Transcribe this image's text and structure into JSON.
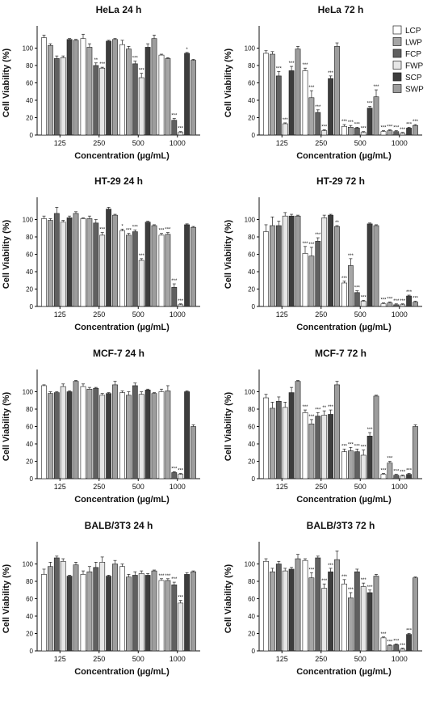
{
  "series_style": [
    {
      "name": "LCP",
      "fill": "#ffffff"
    },
    {
      "name": "LWP",
      "fill": "#a6a6a6"
    },
    {
      "name": "FCP",
      "fill": "#606060"
    },
    {
      "name": "FWP",
      "fill": "#e6e6e6"
    },
    {
      "name": "SCP",
      "fill": "#3d3d3d"
    },
    {
      "name": "SWP",
      "fill": "#9d9d9d"
    }
  ],
  "chart_data": [
    {
      "type": "bar",
      "title": "HeLa 24 h",
      "xlabel": "Concentration (µg/mL)",
      "ylabel": "Cell Viability (%)",
      "categories": [
        "125",
        "250",
        "500",
        "1000"
      ],
      "ylim": [
        0,
        120
      ],
      "yticks": [
        0,
        20,
        40,
        60,
        80,
        100
      ],
      "series": [
        {
          "name": "LCP",
          "values": [
            112,
            111,
            104,
            92
          ],
          "errors": [
            3,
            5,
            5,
            1
          ],
          "stars": [
            "",
            "",
            "",
            ""
          ]
        },
        {
          "name": "LWP",
          "values": [
            103,
            101,
            99,
            88
          ],
          "errors": [
            2,
            4,
            3,
            1
          ],
          "stars": [
            "",
            "",
            "",
            ""
          ]
        },
        {
          "name": "FCP",
          "values": [
            88,
            80,
            82,
            17
          ],
          "errors": [
            3,
            3,
            3,
            2
          ],
          "stars": [
            "",
            "**",
            "***",
            "***"
          ]
        },
        {
          "name": "FWP",
          "values": [
            89,
            77,
            66,
            3
          ],
          "errors": [
            2,
            1,
            5,
            1
          ],
          "stars": [
            "",
            "***",
            "***",
            "***"
          ]
        },
        {
          "name": "SCP",
          "values": [
            110,
            108,
            101,
            94
          ],
          "errors": [
            1,
            1,
            4,
            1
          ],
          "stars": [
            "",
            "",
            "",
            "*"
          ]
        },
        {
          "name": "SWP",
          "values": [
            109,
            110,
            111,
            86
          ],
          "errors": [
            1,
            1,
            4,
            1
          ],
          "stars": [
            "",
            "",
            "",
            ""
          ]
        }
      ]
    },
    {
      "type": "bar",
      "title": "HeLa 72 h",
      "xlabel": "Concentration (µg/mL)",
      "ylabel": "Cell Viability (%)",
      "categories": [
        "125",
        "250",
        "500",
        "1000"
      ],
      "ylim": [
        0,
        120
      ],
      "yticks": [
        0,
        20,
        40,
        60,
        80,
        100
      ],
      "legend": "top-right",
      "series": [
        {
          "name": "LCP",
          "values": [
            94,
            74,
            10,
            4
          ],
          "errors": [
            3,
            3,
            2,
            1
          ],
          "stars": [
            "",
            "***",
            "***",
            "***"
          ]
        },
        {
          "name": "LWP",
          "values": [
            93,
            43,
            9,
            5
          ],
          "errors": [
            3,
            8,
            2,
            1
          ],
          "stars": [
            "",
            "***",
            "***",
            "***"
          ]
        },
        {
          "name": "FCP",
          "values": [
            68,
            26,
            8,
            4
          ],
          "errors": [
            5,
            3,
            1,
            1
          ],
          "stars": [
            "***",
            "***",
            "***",
            "***"
          ]
        },
        {
          "name": "FWP",
          "values": [
            13,
            5,
            3,
            2
          ],
          "errors": [
            1,
            1,
            1,
            1
          ],
          "stars": [
            "***",
            "***",
            "***",
            "***"
          ]
        },
        {
          "name": "SCP",
          "values": [
            74,
            65,
            31,
            8
          ],
          "errors": [
            5,
            3,
            2,
            1
          ],
          "stars": [
            "***",
            "***",
            "***",
            "***"
          ]
        },
        {
          "name": "SWP",
          "values": [
            99,
            102,
            44,
            11
          ],
          "errors": [
            3,
            4,
            8,
            1
          ],
          "stars": [
            "",
            "",
            "***",
            "***"
          ]
        }
      ]
    },
    {
      "type": "bar",
      "title": "HT-29 24 h",
      "xlabel": "Concentration (µg/mL)",
      "ylabel": "Cell Viability (%)",
      "categories": [
        "125",
        "250",
        "500",
        "1000"
      ],
      "ylim": [
        0,
        120
      ],
      "yticks": [
        0,
        20,
        40,
        60,
        80,
        100
      ],
      "series": [
        {
          "name": "LCP",
          "values": [
            101,
            101,
            87,
            82
          ],
          "errors": [
            3,
            1,
            2,
            2
          ],
          "stars": [
            "",
            "",
            "*",
            "***"
          ]
        },
        {
          "name": "LWP",
          "values": [
            99,
            101,
            82,
            83
          ],
          "errors": [
            2,
            3,
            2,
            2
          ],
          "stars": [
            "",
            "",
            "***",
            "***"
          ]
        },
        {
          "name": "FCP",
          "values": [
            107,
            96,
            86,
            22
          ],
          "errors": [
            7,
            4,
            2,
            4
          ],
          "stars": [
            "",
            "",
            "***",
            "***"
          ]
        },
        {
          "name": "FWP",
          "values": [
            97,
            82,
            53,
            2
          ],
          "errors": [
            2,
            3,
            2,
            1
          ],
          "stars": [
            "",
            "***",
            "***",
            "***"
          ]
        },
        {
          "name": "SCP",
          "values": [
            102,
            112,
            97,
            94
          ],
          "errors": [
            2,
            2,
            1,
            1
          ],
          "stars": [
            "",
            "",
            "",
            ""
          ]
        },
        {
          "name": "SWP",
          "values": [
            107,
            105,
            93,
            91
          ],
          "errors": [
            2,
            1,
            1,
            1
          ],
          "stars": [
            "",
            "",
            "",
            ""
          ]
        }
      ]
    },
    {
      "type": "bar",
      "title": "HT-29 72 h",
      "xlabel": "Concentration (µg/mL)",
      "ylabel": "Cell Viability (%)",
      "categories": [
        "125",
        "250",
        "500",
        "1000"
      ],
      "ylim": [
        0,
        120
      ],
      "yticks": [
        0,
        20,
        40,
        60,
        80,
        100
      ],
      "series": [
        {
          "name": "LCP",
          "values": [
            86,
            61,
            27,
            3
          ],
          "errors": [
            8,
            8,
            2,
            1
          ],
          "stars": [
            "",
            "***",
            "***",
            "***"
          ]
        },
        {
          "name": "LWP",
          "values": [
            93,
            58,
            47,
            4
          ],
          "errors": [
            10,
            10,
            8,
            1
          ],
          "stars": [
            "",
            "***",
            "***",
            "***"
          ]
        },
        {
          "name": "FCP",
          "values": [
            93,
            75,
            16,
            2
          ],
          "errors": [
            5,
            4,
            2,
            1
          ],
          "stars": [
            "",
            "***",
            "***",
            "***"
          ]
        },
        {
          "name": "FWP",
          "values": [
            104,
            102,
            6,
            2
          ],
          "errors": [
            4,
            3,
            1,
            1
          ],
          "stars": [
            "",
            "",
            "***",
            "***"
          ]
        },
        {
          "name": "SCP",
          "values": [
            104,
            105,
            95,
            12
          ],
          "errors": [
            2,
            1,
            1,
            1
          ],
          "stars": [
            "",
            "",
            "",
            "***"
          ]
        },
        {
          "name": "SWP",
          "values": [
            104,
            92,
            93,
            5
          ],
          "errors": [
            1,
            1,
            1,
            1
          ],
          "stars": [
            "",
            "**",
            "",
            "***"
          ]
        }
      ]
    },
    {
      "type": "bar",
      "title": "MCF-7 24 h",
      "xlabel": "Concentration (µg/mL)",
      "ylabel": "Cell Viability (%)",
      "categories": [
        "125",
        "250",
        "500",
        "1000"
      ],
      "ylim": [
        0,
        120
      ],
      "yticks": [
        0,
        20,
        40,
        60,
        80,
        100
      ],
      "series": [
        {
          "name": "LCP",
          "values": [
            107,
            106,
            99,
            100
          ],
          "errors": [
            1,
            3,
            2,
            3
          ],
          "stars": [
            "",
            "",
            "",
            ""
          ]
        },
        {
          "name": "LWP",
          "values": [
            98,
            103,
            96,
            101
          ],
          "errors": [
            2,
            2,
            4,
            6
          ],
          "stars": [
            "",
            "",
            "",
            ""
          ]
        },
        {
          "name": "FCP",
          "values": [
            99,
            104,
            107,
            7
          ],
          "errors": [
            1,
            1,
            3,
            1
          ],
          "stars": [
            "",
            "",
            "",
            "***"
          ]
        },
        {
          "name": "FWP",
          "values": [
            106,
            96,
            97,
            5
          ],
          "errors": [
            3,
            2,
            3,
            1
          ],
          "stars": [
            "",
            "",
            "",
            "***"
          ]
        },
        {
          "name": "SCP",
          "values": [
            100,
            98,
            102,
            100
          ],
          "errors": [
            1,
            1,
            1,
            1
          ],
          "stars": [
            "",
            "",
            "",
            ""
          ]
        },
        {
          "name": "SWP",
          "values": [
            112,
            108,
            98,
            60
          ],
          "errors": [
            1,
            4,
            1,
            2
          ],
          "stars": [
            "",
            "",
            "",
            ""
          ]
        }
      ]
    },
    {
      "type": "bar",
      "title": "MCF-7 72 h",
      "xlabel": "Concentration (µg/mL)",
      "ylabel": "Cell Viability (%)",
      "categories": [
        "125",
        "250",
        "500",
        "1000"
      ],
      "ylim": [
        0,
        120
      ],
      "yticks": [
        0,
        20,
        40,
        60,
        80,
        100
      ],
      "series": [
        {
          "name": "LCP",
          "values": [
            93,
            76,
            31,
            5
          ],
          "errors": [
            4,
            3,
            3,
            1
          ],
          "stars": [
            "",
            "***",
            "***",
            "***"
          ]
        },
        {
          "name": "LWP",
          "values": [
            81,
            63,
            32,
            18
          ],
          "errors": [
            7,
            5,
            4,
            2
          ],
          "stars": [
            "",
            "***",
            "***",
            "***"
          ]
        },
        {
          "name": "FCP",
          "values": [
            89,
            72,
            31,
            4
          ],
          "errors": [
            5,
            4,
            3,
            1
          ],
          "stars": [
            "",
            "***",
            "***",
            "***"
          ]
        },
        {
          "name": "FWP",
          "values": [
            82,
            73,
            27,
            3
          ],
          "errors": [
            6,
            5,
            6,
            1
          ],
          "stars": [
            "",
            "**",
            "***",
            "***"
          ]
        },
        {
          "name": "SCP",
          "values": [
            99,
            74,
            49,
            5
          ],
          "errors": [
            6,
            5,
            4,
            1
          ],
          "stars": [
            "",
            "***",
            "***",
            "***"
          ]
        },
        {
          "name": "SWP",
          "values": [
            112,
            108,
            95,
            60
          ],
          "errors": [
            1,
            4,
            1,
            2
          ],
          "stars": [
            "",
            "",
            "",
            ""
          ]
        }
      ]
    },
    {
      "type": "bar",
      "title": "BALB/3T3 24 h",
      "xlabel": "Concentration (µg/mL)",
      "ylabel": "Cell Viability (%)",
      "categories": [
        "125",
        "250",
        "500",
        "1000"
      ],
      "ylim": [
        0,
        120
      ],
      "yticks": [
        0,
        20,
        40,
        60,
        80,
        100
      ],
      "series": [
        {
          "name": "LCP",
          "values": [
            88,
            88,
            97,
            81
          ],
          "errors": [
            6,
            4,
            3,
            2
          ],
          "stars": [
            "",
            "",
            "",
            "***"
          ]
        },
        {
          "name": "LWP",
          "values": [
            97,
            91,
            85,
            81
          ],
          "errors": [
            5,
            6,
            3,
            2
          ],
          "stars": [
            "",
            "",
            "",
            "***"
          ]
        },
        {
          "name": "FCP",
          "values": [
            107,
            96,
            87,
            76
          ],
          "errors": [
            2,
            6,
            4,
            3
          ],
          "stars": [
            "",
            "",
            "",
            "***"
          ]
        },
        {
          "name": "FWP",
          "values": [
            103,
            102,
            89,
            55
          ],
          "errors": [
            3,
            6,
            3,
            3
          ],
          "stars": [
            "",
            "",
            "",
            "***"
          ]
        },
        {
          "name": "SCP",
          "values": [
            86,
            86,
            87,
            88
          ],
          "errors": [
            1,
            1,
            2,
            2
          ],
          "stars": [
            "",
            "",
            "",
            ""
          ]
        },
        {
          "name": "SWP",
          "values": [
            99,
            100,
            92,
            91
          ],
          "errors": [
            3,
            4,
            1,
            1
          ],
          "stars": [
            "",
            "",
            "",
            ""
          ]
        }
      ]
    },
    {
      "type": "bar",
      "title": "BALB/3T3 72 h",
      "xlabel": "Concentration (µg/mL)",
      "ylabel": "Cell Viability (%)",
      "categories": [
        "125",
        "250",
        "500",
        "1000"
      ],
      "ylim": [
        0,
        120
      ],
      "yticks": [
        0,
        20,
        40,
        60,
        80,
        100
      ],
      "series": [
        {
          "name": "LCP",
          "values": [
            103,
            104,
            77,
            15
          ],
          "errors": [
            3,
            2,
            5,
            1
          ],
          "stars": [
            "",
            "",
            "***",
            "***"
          ]
        },
        {
          "name": "LWP",
          "values": [
            91,
            84,
            61,
            6
          ],
          "errors": [
            4,
            6,
            6,
            1
          ],
          "stars": [
            "",
            "***",
            "***",
            "***"
          ]
        },
        {
          "name": "FCP",
          "values": [
            100,
            107,
            91,
            7
          ],
          "errors": [
            3,
            2,
            3,
            1
          ],
          "stars": [
            "",
            "",
            "",
            "***"
          ]
        },
        {
          "name": "FWP",
          "values": [
            92,
            72,
            74,
            2
          ],
          "errors": [
            3,
            5,
            4,
            1
          ],
          "stars": [
            "",
            "***",
            "***",
            "***"
          ]
        },
        {
          "name": "SCP",
          "values": [
            94,
            91,
            67,
            19
          ],
          "errors": [
            2,
            4,
            3,
            1
          ],
          "stars": [
            "",
            "***",
            "***",
            "***"
          ]
        },
        {
          "name": "SWP",
          "values": [
            106,
            105,
            86,
            84
          ],
          "errors": [
            5,
            10,
            2,
            1
          ],
          "stars": [
            "",
            "",
            "",
            ""
          ]
        }
      ]
    }
  ]
}
